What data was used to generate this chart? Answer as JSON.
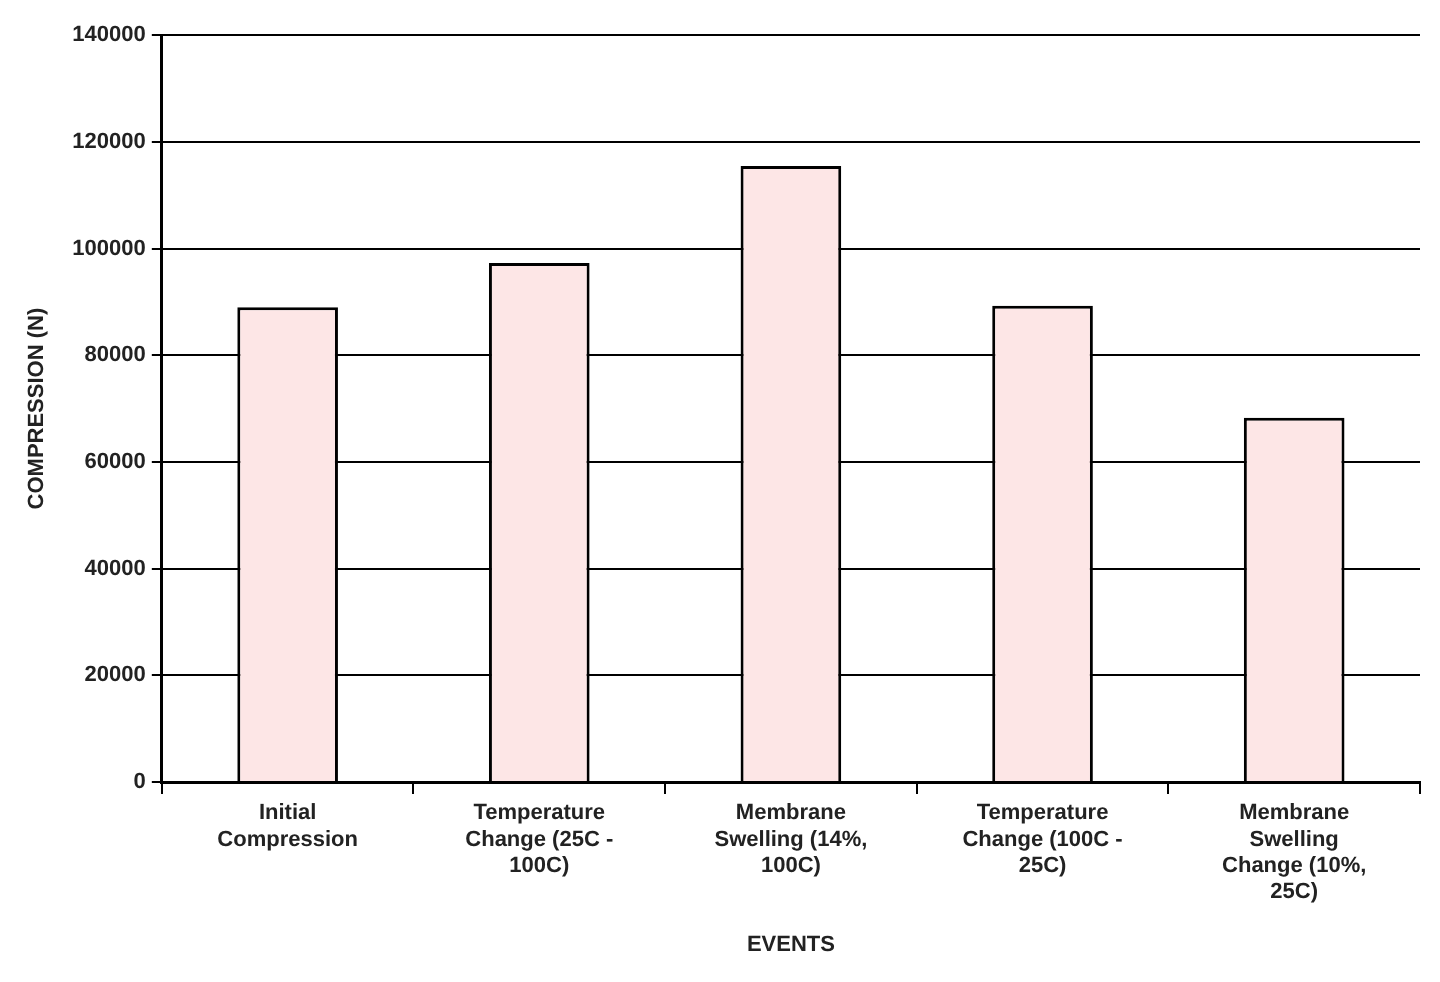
{
  "chart_data": {
    "type": "bar",
    "xlabel": "EVENTS",
    "ylabel": "COMPRESSION (N)",
    "categories": [
      "Initial Compression",
      "Temperature Change (25C - 100C)",
      "Membrane Swelling (14%, 100C)",
      "Temperature Change (100C - 25C)",
      "Membrane Swelling Change (10%, 25C)"
    ],
    "values": [
      89000,
      97300,
      115500,
      89300,
      68300
    ],
    "color": "#fde6e6",
    "ylim": [
      0,
      140000
    ],
    "yticks": [
      0,
      20000,
      40000,
      60000,
      80000,
      100000,
      120000,
      140000
    ],
    "grid": "y",
    "legend": false
  }
}
